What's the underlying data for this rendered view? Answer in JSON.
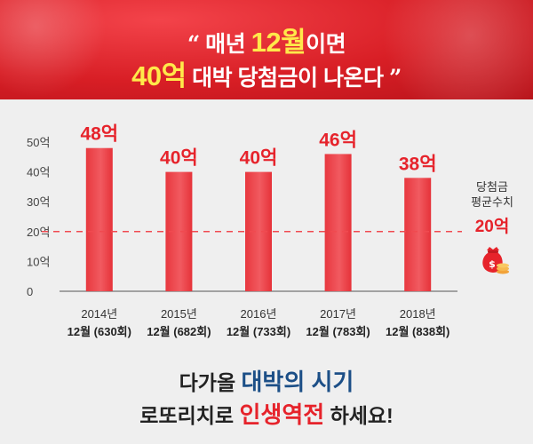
{
  "header": {
    "line1_open_quote": "“",
    "line1_before": "매년",
    "line1_highlight": "12월",
    "line1_after": "이면",
    "line2_highlight": "40억",
    "line2_after": "대박 당첨금이 나온다",
    "line2_close_quote": "”"
  },
  "colors": {
    "header_red": "#d81e25",
    "bar_red": "#e8383f",
    "highlight_yellow": "#ffe94a",
    "accent_red": "#e6232b",
    "accent_blue": "#1c4f87"
  },
  "chart_data": {
    "type": "bar",
    "categories": [
      [
        "2014년",
        "12월 (630회)"
      ],
      [
        "2015년",
        "12월 (682회)"
      ],
      [
        "2016년",
        "12월 (733회)"
      ],
      [
        "2017년",
        "12월 (783회)"
      ],
      [
        "2018년",
        "12월 (838회)"
      ]
    ],
    "values": [
      48,
      40,
      40,
      46,
      38
    ],
    "value_labels": [
      "48억",
      "40억",
      "40억",
      "46억",
      "38억"
    ],
    "yticks": [
      {
        "value": 0,
        "label": "0"
      },
      {
        "value": 10,
        "label": "10억"
      },
      {
        "value": 20,
        "label": "20억"
      },
      {
        "value": 30,
        "label": "30억"
      },
      {
        "value": 40,
        "label": "40억"
      },
      {
        "value": 50,
        "label": "50억"
      }
    ],
    "ylim": [
      0,
      50
    ],
    "reference_line": {
      "value": 20,
      "style": "dashed"
    },
    "grid": false
  },
  "average_note": {
    "label_line1": "당첨금",
    "label_line2": "평균수치",
    "value": "20억",
    "icon": "moneybag-icon"
  },
  "footer": {
    "line1_before": "다가올",
    "line1_highlight": "대박의 시기",
    "line2_before": "로또리치로",
    "line2_highlight": "인생역전",
    "line2_after": "하세요!"
  }
}
